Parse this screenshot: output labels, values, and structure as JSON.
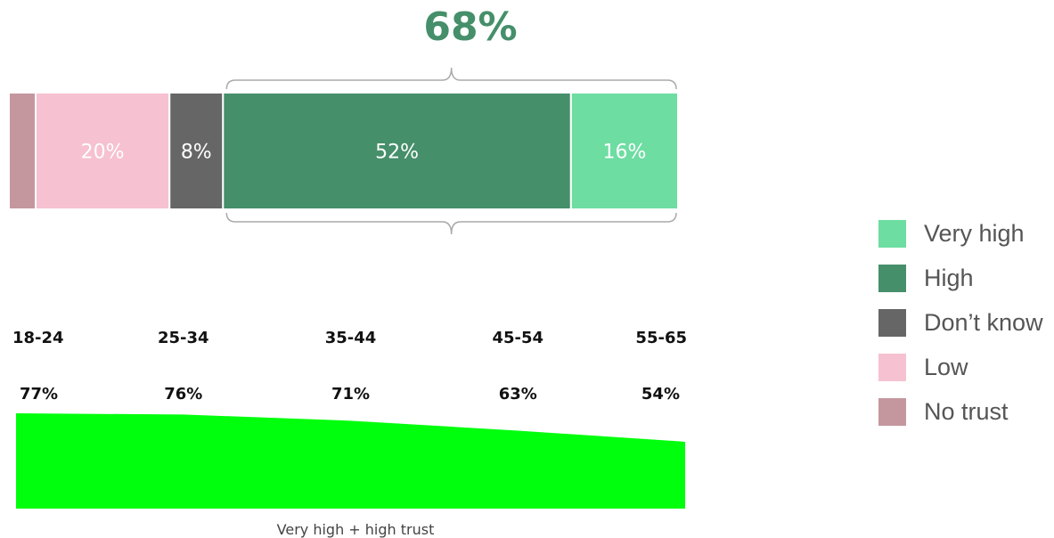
{
  "chart_data": [
    {
      "type": "stacked_bar",
      "title": "68%",
      "total_unit": "%",
      "segments": [
        {
          "name": "No trust",
          "value": 4,
          "label": "",
          "color": "#c4979f"
        },
        {
          "name": "Low",
          "value": 20,
          "label": "20%",
          "color": "#f6c1d1"
        },
        {
          "name": "Don’t know",
          "value": 8,
          "label": "8%",
          "color": "#666666"
        },
        {
          "name": "High",
          "value": 52,
          "label": "52%",
          "color": "#458f6a"
        },
        {
          "name": "Very high",
          "value": 16,
          "label": "16%",
          "color": "#6ddda2"
        }
      ],
      "bracket": {
        "label": "68%",
        "covers": [
          "High",
          "Very high"
        ],
        "color": "#458f6a"
      }
    },
    {
      "type": "area",
      "categories": [
        "18-24",
        "25-34",
        "35-44",
        "45-54",
        "55-65"
      ],
      "values": [
        77,
        76,
        71,
        63,
        54
      ],
      "value_labels": [
        "77%",
        "76%",
        "71%",
        "63%",
        "54%"
      ],
      "xlabel": "Very high + high trust",
      "color": "#00ff0d"
    }
  ],
  "legend": [
    {
      "label": "Very high",
      "color": "#6ddda2"
    },
    {
      "label": "High",
      "color": "#458f6a"
    },
    {
      "label": "Don’t know",
      "color": "#666666"
    },
    {
      "label": "Low",
      "color": "#f6c1d1"
    },
    {
      "label": "No trust",
      "color": "#c4979f"
    }
  ]
}
